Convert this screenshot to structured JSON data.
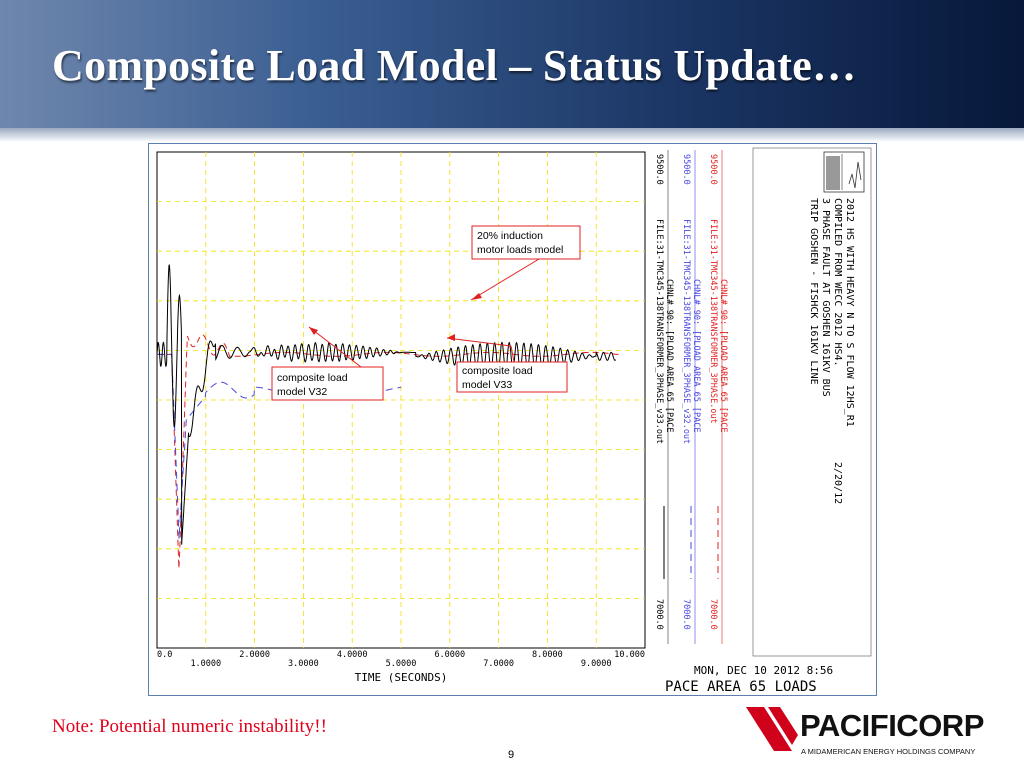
{
  "slide": {
    "title": "Composite Load Model – Status Update…",
    "note": "Note: Potential numeric instability!!",
    "page_number": "9"
  },
  "logo": {
    "name": "PACIFICORP",
    "tagline": "A MIDAMERICAN ENERGY HOLDINGS COMPANY",
    "accent_color": "#d0021b"
  },
  "chart_data": {
    "type": "line",
    "xlabel": "TIME (SECONDS)",
    "xlim": [
      0.0,
      10.0
    ],
    "x_ticks_upper": [
      "0.0",
      "2.0000",
      "4.0000",
      "6.0000",
      "8.0000",
      "10.000"
    ],
    "x_ticks_lower": [
      "1.0000",
      "3.0000",
      "5.0000",
      "7.0000",
      "9.0000"
    ],
    "ylim": [
      7000.0,
      9500.0
    ],
    "grid": true,
    "colors": {
      "grid": "#f0e000",
      "black": "#000000",
      "blue": "#4848e0",
      "red": "#e02020"
    },
    "series": [
      {
        "file": "FILE:31-TMC345-138TRANSFORMER_3PHASE_v33.out",
        "channel": "CHNL# 90: [PLOAD AREA 65 [PACE",
        "ymax_label": "9500.0",
        "ymin_label": "7000.0",
        "color": "#000000",
        "style": "solid"
      },
      {
        "file": "FILE:31-TMC345-138TRANSFORMER_3PHASE_v32.out",
        "channel": "CHNL# 90: [PLOAD AREA 65 [PACE",
        "ymax_label": "9500.0",
        "ymin_label": "7000.0",
        "color": "#4848e0",
        "style": "dashed"
      },
      {
        "file": "FILE:31-TMC345-138TRANSFORMER_3PHASE.out",
        "channel": "CHNL# 90: [PLOAD AREA 65 [PACE",
        "ymax_label": "9500.0",
        "ymin_label": "7000.0",
        "color": "#e02020",
        "style": "dashed"
      }
    ],
    "case_info": [
      "2012 HS WITH HEAVY N TO S FLOW  12HS_R1",
      "COMPILED FROM WECC 2012 HS4.",
      "3 PHASE FAULT AT GOSHEN 161KV BUS",
      "TRIP GOSHEN - FISHCK 161KV LINE",
      "2/20/12"
    ],
    "timestamp": "MON, DEC 10 2012   8:56",
    "caption": "PACE AREA 65 LOADS",
    "annotations": [
      {
        "text_lines": [
          "20% induction",
          "motor loads model"
        ]
      },
      {
        "text_lines": [
          "composite load",
          "model V32"
        ]
      },
      {
        "text_lines": [
          "composite load",
          "model V33"
        ]
      }
    ]
  }
}
